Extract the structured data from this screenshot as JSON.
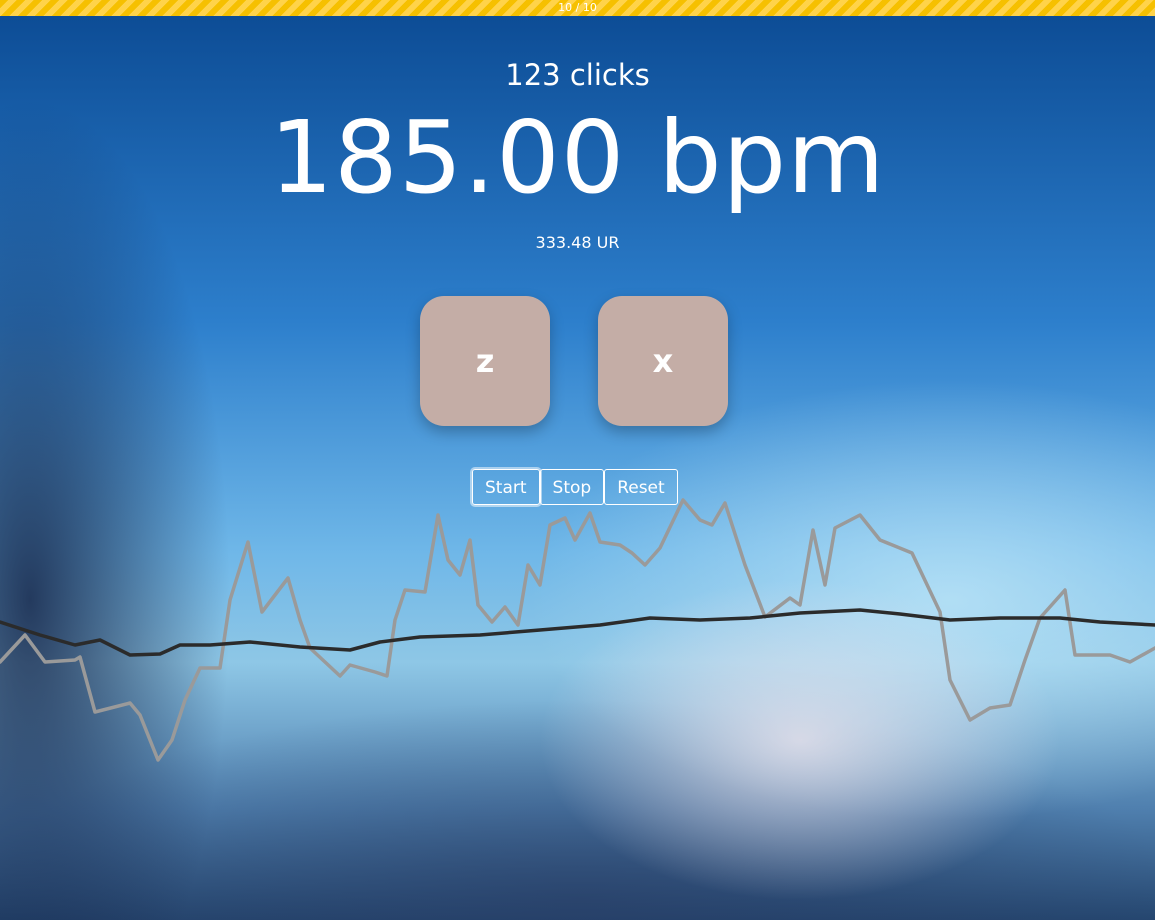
{
  "progress": "10 / 10",
  "clicks": "123 clicks",
  "bpm": "185.00 bpm",
  "ur": "333.48 UR",
  "keys": [
    "z",
    "x"
  ],
  "buttons": [
    "Start",
    "Stop",
    "Reset"
  ]
}
